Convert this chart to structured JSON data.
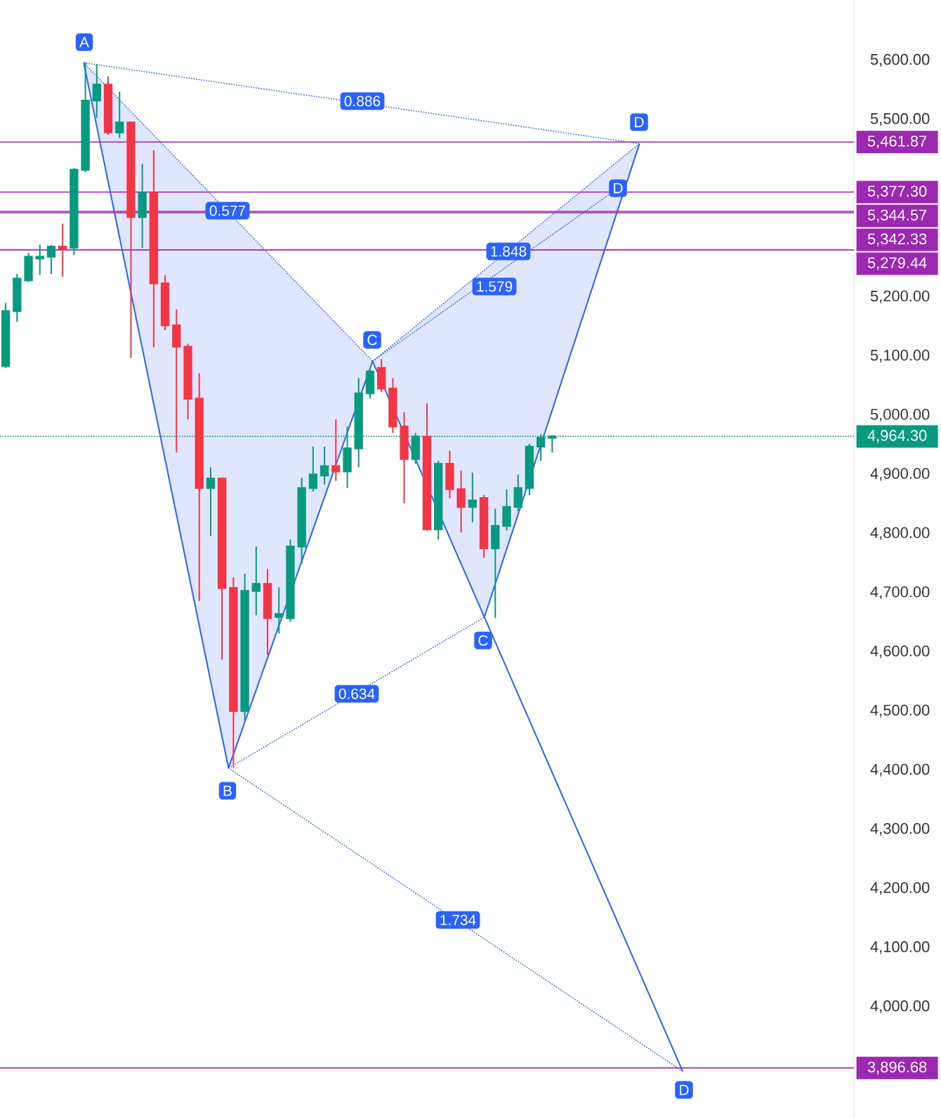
{
  "chart_data": {
    "type": "candlestick",
    "categories": [
      null,
      null,
      null,
      null,
      null,
      null,
      null,
      null,
      null,
      null,
      null,
      null,
      null,
      null,
      null,
      null,
      null,
      null,
      null,
      null,
      null,
      null,
      null,
      null,
      null,
      null,
      null,
      null,
      null,
      null,
      null,
      null,
      null,
      null,
      null,
      null,
      null,
      null,
      null,
      null,
      null,
      null,
      null,
      null,
      null,
      null,
      null,
      null,
      null,
      null,
      null,
      null,
      null,
      null,
      null,
      null,
      null,
      null,
      null,
      null,
      null,
      null,
      null,
      null,
      null,
      null,
      null,
      null,
      null,
      null,
      null,
      null,
      null,
      null,
      null
    ],
    "ohlc": [
      [
        5083,
        5190,
        5080,
        5176
      ],
      [
        5176,
        5239,
        5158,
        5231
      ],
      [
        5228,
        5274,
        5225,
        5268
      ],
      [
        5265,
        5288,
        5237,
        5268
      ],
      [
        5268,
        5288,
        5239,
        5285
      ],
      [
        5285,
        5324,
        5234,
        5281
      ],
      [
        5283,
        5418,
        5271,
        5415
      ],
      [
        5415,
        5596,
        5411,
        5532
      ],
      [
        5532,
        5594,
        5503,
        5559
      ],
      [
        5559,
        5573,
        5474,
        5478
      ],
      [
        5478,
        5547,
        5469,
        5495
      ],
      [
        5495,
        5497,
        5097,
        5335
      ],
      [
        5335,
        5425,
        5283,
        5376
      ],
      [
        5376,
        5448,
        5115,
        5223
      ],
      [
        5223,
        5237,
        5144,
        5152
      ],
      [
        5152,
        5179,
        4937,
        5116
      ],
      [
        5116,
        5121,
        4993,
        5028
      ],
      [
        5028,
        5071,
        4686,
        4877
      ],
      [
        4877,
        4912,
        4796,
        4893
      ],
      [
        4893,
        4895,
        4587,
        4708
      ],
      [
        4708,
        4726,
        4404,
        4500
      ],
      [
        4500,
        4732,
        4483,
        4703
      ],
      [
        4703,
        4778,
        4662,
        4715
      ],
      [
        4715,
        4740,
        4595,
        4657
      ],
      [
        4659,
        4709,
        4631,
        4664
      ],
      [
        4657,
        4790,
        4651,
        4778
      ],
      [
        4778,
        4894,
        4749,
        4877
      ],
      [
        4877,
        4947,
        4871,
        4900
      ],
      [
        4898,
        4947,
        4883,
        4914
      ],
      [
        4914,
        4993,
        4889,
        4905
      ],
      [
        4905,
        4981,
        4877,
        4944
      ],
      [
        4944,
        5063,
        4912,
        5037
      ],
      [
        5037,
        5080,
        5028,
        5074
      ],
      [
        5080,
        5095,
        5039,
        5045
      ],
      [
        5045,
        5063,
        4970,
        4981
      ],
      [
        4981,
        5005,
        4851,
        4926
      ],
      [
        4926,
        4970,
        4918,
        4964
      ],
      [
        4964,
        5020,
        4805,
        4807
      ],
      [
        4807,
        4923,
        4790,
        4918
      ],
      [
        4918,
        4940,
        4860,
        4875
      ],
      [
        4875,
        4906,
        4802,
        4845
      ],
      [
        4845,
        4903,
        4819,
        4856
      ],
      [
        4860,
        4865,
        4759,
        4775
      ],
      [
        4775,
        4842,
        4657,
        4813
      ],
      [
        4813,
        4875,
        4805,
        4845
      ],
      [
        4845,
        4900,
        4838,
        4877
      ],
      [
        4877,
        4952,
        4865,
        4947
      ],
      [
        4947,
        4968,
        4923,
        4962
      ],
      [
        4962,
        4966,
        4937,
        4964.3
      ],
      null,
      null,
      null,
      null,
      null,
      null,
      null,
      null,
      null,
      null,
      null,
      null,
      null,
      null,
      null,
      null,
      null,
      null,
      null,
      null,
      null,
      null,
      null,
      null,
      null,
      null
    ],
    "colors": [
      "#089981",
      "#089981",
      "#089981",
      "#089981",
      "#089981",
      "#f23645",
      "#089981",
      "#089981",
      "#089981",
      "#f23645",
      "#089981",
      "#f23645",
      "#089981",
      "#f23645",
      "#f23645",
      "#f23645",
      "#f23645",
      "#f23645",
      "#089981",
      "#f23645",
      "#f23645",
      "#089981",
      "#089981",
      "#f23645",
      "#089981",
      "#089981",
      "#089981",
      "#089981",
      "#089981",
      "#f23645",
      "#089981",
      "#089981",
      "#089981",
      "#f23645",
      "#f23645",
      "#f23645",
      "#089981",
      "#f23645",
      "#089981",
      "#f23645",
      "#f23645",
      "#089981",
      "#f23645",
      "#089981",
      "#089981",
      "#089981",
      "#089981",
      "#089981",
      "#089981",
      null,
      null,
      null,
      null,
      null,
      null,
      null,
      null,
      null,
      null,
      null,
      null,
      null,
      null,
      null,
      null,
      null,
      null,
      null,
      null,
      null,
      null,
      null,
      null,
      null,
      null
    ],
    "ylim": [
      3812,
      5702
    ],
    "yticks": [
      {
        "value": 4000,
        "label": "4,000.00"
      },
      {
        "value": 4100,
        "label": "4,100.00"
      },
      {
        "value": 4200,
        "label": "4,200.00"
      },
      {
        "value": 4300,
        "label": "4,300.00"
      },
      {
        "value": 4400,
        "label": "4,400.00"
      },
      {
        "value": 4500,
        "label": "4,500.00"
      },
      {
        "value": 4600,
        "label": "4,600.00"
      },
      {
        "value": 4700,
        "label": "4,700.00"
      },
      {
        "value": 4800,
        "label": "4,800.00"
      },
      {
        "value": 4900,
        "label": "4,900.00"
      },
      {
        "value": 5000,
        "label": "5,000.00"
      },
      {
        "value": 5100,
        "label": "5,100.00"
      },
      {
        "value": 5200,
        "label": "5,200.00"
      },
      {
        "value": 5500,
        "label": "5,500.00"
      },
      {
        "value": 5600,
        "label": "5,600.00"
      }
    ],
    "tick_labels": "y",
    "ref_lines": [
      {
        "axis": "y",
        "value": 5461.87,
        "label": "5,461.87",
        "color": "#9c27b0"
      },
      {
        "axis": "y",
        "value": 5377.3,
        "label": "5,377.30",
        "color": "#9c27b0"
      },
      {
        "axis": "y",
        "value": 5344.57,
        "label": "5,344.57",
        "color": "#9c27b0"
      },
      {
        "axis": "y",
        "value": 5342.33,
        "label": "5,342.33",
        "color": "#9c27b0"
      },
      {
        "axis": "y",
        "value": 5279.44,
        "label": "5,279.44",
        "color": "#9c27b0"
      },
      {
        "axis": "y",
        "value": 3896.68,
        "label": "3,896.68",
        "color": "#9c27b0"
      },
      {
        "axis": "y",
        "value": 4964.3,
        "label": "4,964.30",
        "color": "#089981",
        "line_style": "dotted"
      }
    ],
    "annotations": [
      "A",
      "B",
      "C",
      "C",
      "D",
      "D",
      "D",
      "0.886",
      "0.577",
      "1.848",
      "1.579",
      "0.634",
      "1.734"
    ]
  }
}
